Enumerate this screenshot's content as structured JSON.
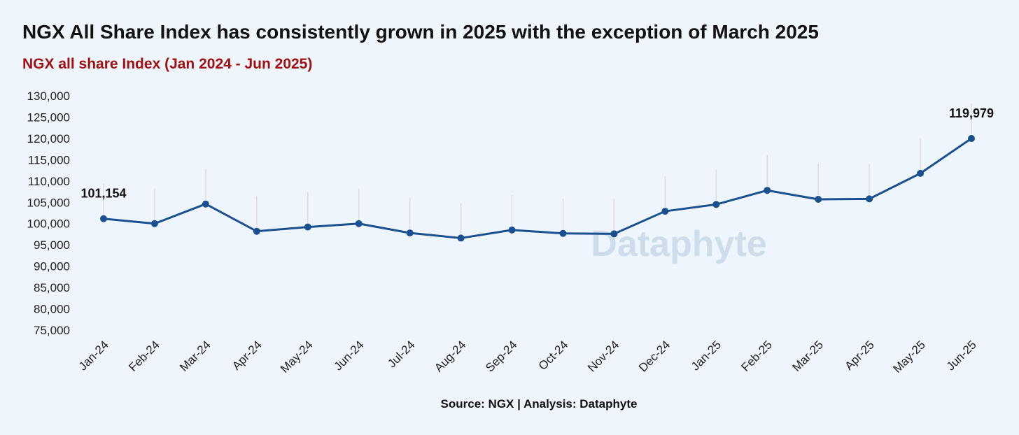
{
  "title": "NGX All Share Index has consistently grown in 2025 with the exception of March 2025",
  "subtitle": "NGX all share Index (Jan 2024 - Jun 2025)",
  "source": "Source: NGX | Analysis: Dataphyte",
  "watermark": "Dataphyte",
  "colors": {
    "background": "#eef5fc",
    "line": "#1a5090",
    "subtitle": "#a01010",
    "guide": "#dcdcdc",
    "watermark": "#c9d9ea"
  },
  "chart_data": {
    "type": "line",
    "categories": [
      "Jan-24",
      "Feb-24",
      "Mar-24",
      "Apr-24",
      "May-24",
      "Jun-24",
      "Jul-24",
      "Aug-24",
      "Sep-24",
      "Oct-24",
      "Nov-24",
      "Dec-24",
      "Jan-25",
      "Feb-25",
      "Mar-25",
      "Apr-25",
      "May-25",
      "Jun-25"
    ],
    "series": [
      {
        "values": [
          101154,
          100000,
          104600,
          98200,
          99200,
          100000,
          97800,
          96600,
          98500,
          97700,
          97600,
          102900,
          104500,
          107800,
          105700,
          105800,
          111800,
          119979
        ]
      }
    ],
    "data_labels": [
      {
        "index": 0,
        "text": "101,154"
      },
      {
        "index": 17,
        "text": "119,979"
      }
    ],
    "yticks": [
      75000,
      80000,
      85000,
      90000,
      95000,
      100000,
      105000,
      110000,
      115000,
      120000,
      125000,
      130000
    ],
    "ytick_labels": [
      "75,000",
      "80,000",
      "85,000",
      "90,000",
      "95,000",
      "100,000",
      "105,000",
      "110,000",
      "115,000",
      "120,000",
      "125,000",
      "130,000"
    ],
    "ylim": [
      75000,
      130000
    ],
    "grid": false,
    "markers": true
  }
}
